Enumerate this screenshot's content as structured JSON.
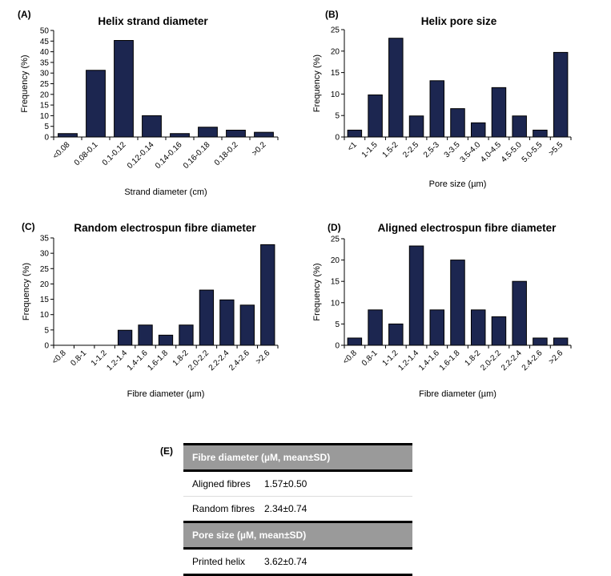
{
  "chart_data": [
    {
      "panel": "(A)",
      "type": "bar",
      "title": "Helix strand diameter",
      "xlabel": "Strand diameter (cm)",
      "ylabel": "Frequency (%)",
      "ylim": [
        0,
        50
      ],
      "yticks": [
        0,
        5,
        10,
        15,
        20,
        25,
        30,
        35,
        40,
        45,
        50
      ],
      "categories": [
        "<0.08",
        "0.08-0.1",
        "0.1-0.12",
        "0.12-0.14",
        "0.14-0.16",
        "0.16-0.18",
        "0.18-0.2",
        ">0.2"
      ],
      "values": [
        1.6,
        31.3,
        45.3,
        10.0,
        1.6,
        4.6,
        3.2,
        2.2
      ],
      "bar_color": "#1c2650",
      "grid": false
    },
    {
      "panel": "(B)",
      "type": "bar",
      "title": "Helix pore size",
      "xlabel": "Pore size (µm)",
      "ylabel": "Frequency (%)",
      "ylim": [
        0,
        25
      ],
      "yticks": [
        0,
        5,
        10,
        15,
        20,
        25
      ],
      "categories": [
        "<1",
        "1-1.5",
        "1.5-2",
        "2-2.5",
        "2.5-3",
        "3-3.5",
        "3.5-4.0",
        "4.0-4.5",
        "4.5-5.0",
        "5.0-5.5",
        ">5.5"
      ],
      "values": [
        1.6,
        9.8,
        23.0,
        4.9,
        13.1,
        6.6,
        3.3,
        11.5,
        4.9,
        1.6,
        19.7
      ],
      "bar_color": "#1c2650",
      "grid": false
    },
    {
      "panel": "(C)",
      "type": "bar",
      "title": "Random electrospun fibre diameter",
      "xlabel": "Fibre diameter (µm)",
      "ylabel": "Frequency (%)",
      "ylim": [
        0,
        35
      ],
      "yticks": [
        0,
        5,
        10,
        15,
        20,
        25,
        30,
        35
      ],
      "categories": [
        "<0.8",
        "0.8-1",
        "1-1.2",
        "1.2-1.4",
        "1.4-1.6",
        "1.6-1.8",
        "1.8-2",
        "2.0-2.2",
        "2.2-2.4",
        "2.4-2.6",
        ">2.6"
      ],
      "values": [
        0,
        0,
        0,
        4.9,
        6.6,
        3.3,
        6.6,
        18.0,
        14.8,
        13.1,
        32.8
      ],
      "bar_color": "#1c2650",
      "grid": false
    },
    {
      "panel": "(D)",
      "type": "bar",
      "title": "Aligned electrospun fibre diameter",
      "xlabel": "Fibre diameter (µm)",
      "ylabel": "Frequency (%)",
      "ylim": [
        0,
        25
      ],
      "yticks": [
        0,
        5,
        10,
        15,
        20,
        25
      ],
      "categories": [
        "<0.8",
        "0.8-1",
        "1-1.2",
        "1.2-1.4",
        "1.4-1.6",
        "1.6-1.8",
        "1.8-2",
        "2.0-2.2",
        "2.2-2.4",
        "2.4-2.6",
        ">2.6"
      ],
      "values": [
        1.7,
        8.3,
        5.0,
        23.3,
        8.3,
        20.0,
        8.3,
        6.7,
        15.0,
        1.7,
        1.7
      ],
      "bar_color": "#1c2650",
      "grid": false
    }
  ],
  "table": {
    "panel": "(E)",
    "header_fill": "#9a9a9a",
    "sections": [
      {
        "header": "Fibre diameter (µM, mean±SD)",
        "rows": [
          {
            "label": "Aligned fibres",
            "value": "1.57±0.50"
          },
          {
            "label": "Random fibres",
            "value": "2.34±0.74"
          }
        ]
      },
      {
        "header": "Pore size (µM, mean±SD)",
        "rows": [
          {
            "label": "Printed helix",
            "value": "3.62±0.74"
          }
        ]
      }
    ]
  }
}
